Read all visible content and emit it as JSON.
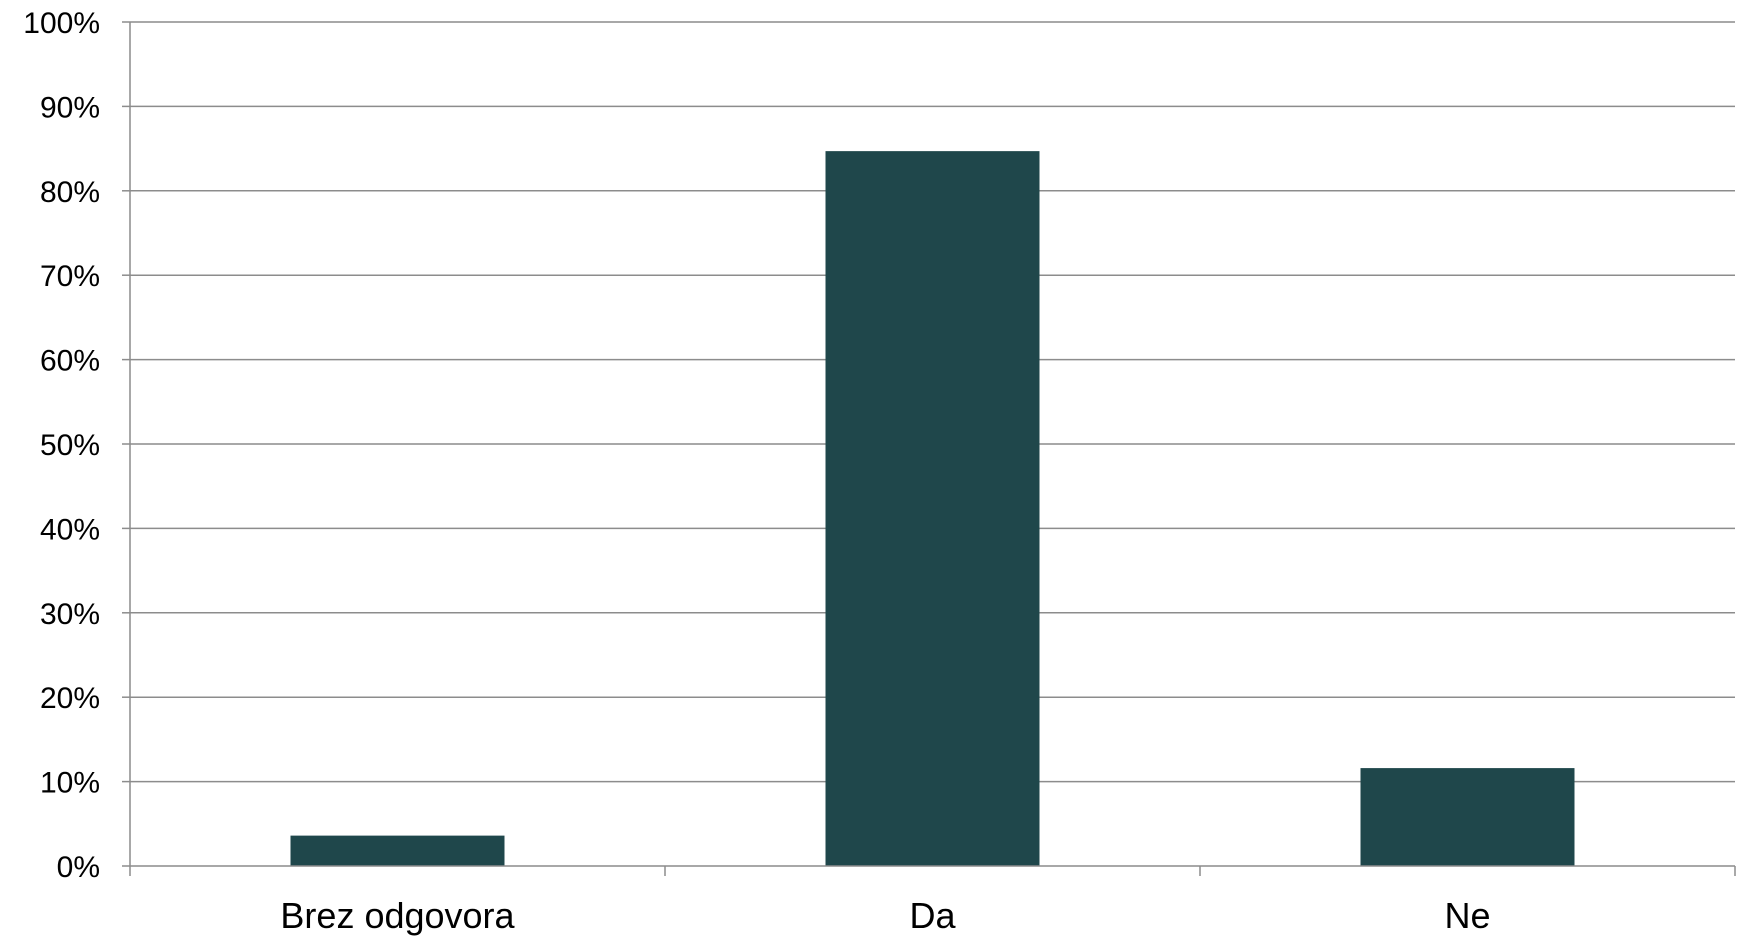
{
  "chart_data": {
    "type": "bar",
    "title": "",
    "xlabel": "",
    "ylabel": "",
    "categories": [
      "Brez odgovora",
      "Da",
      "Ne"
    ],
    "values": [
      3.6,
      84.7,
      11.6
    ],
    "ylim": [
      0,
      100
    ],
    "y_ticks": [
      0,
      10,
      20,
      30,
      40,
      50,
      60,
      70,
      80,
      90,
      100
    ],
    "y_tick_labels": [
      "0%",
      "10%",
      "20%",
      "30%",
      "40%",
      "50%",
      "60%",
      "70%",
      "80%",
      "90%",
      "100%"
    ],
    "grid": true,
    "legend": "none",
    "bar_color": "#1f474b"
  }
}
